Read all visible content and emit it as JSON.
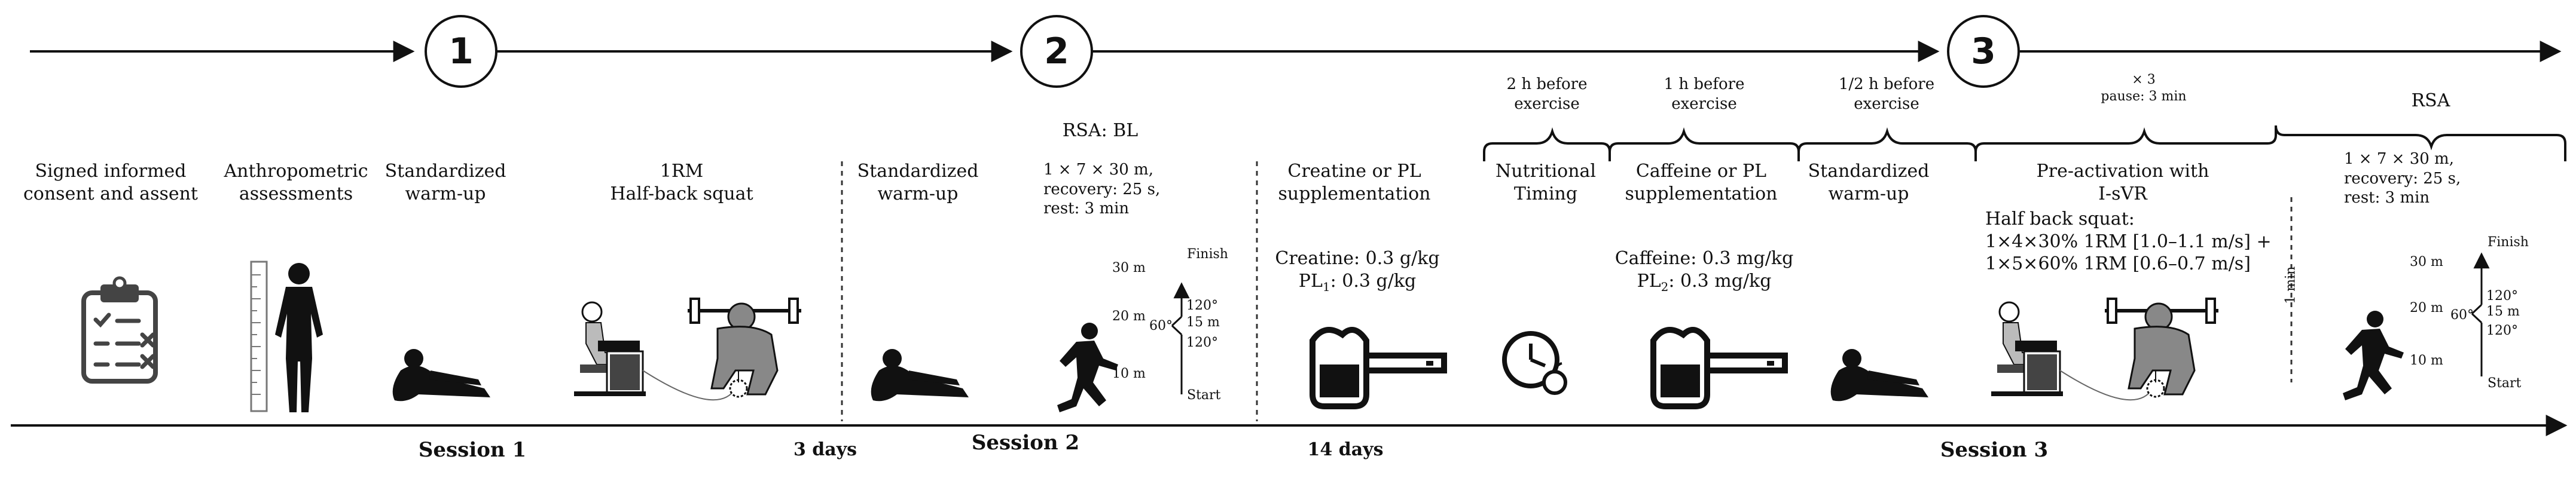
{
  "steps": [
    "1",
    "2",
    "3"
  ],
  "session1": {
    "consent": [
      "Signed informed",
      "consent and assent"
    ],
    "anthro": [
      "Anthropometric",
      "assessments"
    ],
    "warmup": [
      "Standardized",
      "warm-up"
    ],
    "rm": [
      "1RM",
      "Half-back squat"
    ],
    "label": "Session 1"
  },
  "gap1": "3 days",
  "session2": {
    "warmup": [
      "Standardized",
      "warm-up"
    ],
    "rsa_title": "RSA: BL",
    "rsa_details": [
      "1 × 7 × 30 m,",
      "recovery: 25 s,",
      "rest: 3 min"
    ],
    "supp": [
      "Creatine or PL",
      "supplementation"
    ],
    "creatine": "Creatine: 0.3 g/kg",
    "pl1_prefix": "PL",
    "pl1_sub": "1",
    "pl1_suffix": ": 0.3 g/kg",
    "label": "Session 2"
  },
  "gap2": "14 days",
  "session3": {
    "time1": [
      "2 h before",
      "exercise"
    ],
    "time2": [
      "1 h before",
      "exercise"
    ],
    "time3": [
      "1/2 h before",
      "exercise"
    ],
    "reps": [
      "× 3",
      "pause: 3 min"
    ],
    "rsa_label": "RSA",
    "nutri": [
      "Nutritional",
      "Timing"
    ],
    "caffeine_supp": [
      "Caffeine or PL",
      "supplementation"
    ],
    "caffeine": "Caffeine: 0.3 mg/kg",
    "pl2_prefix": "PL",
    "pl2_sub": "2",
    "pl2_suffix": ": 0.3 mg/kg",
    "warmup": [
      "Standardized",
      "warm-up"
    ],
    "preact": [
      "Pre-activation with",
      "I-sVR"
    ],
    "squat_title": "Half back squat:",
    "squat_lines": [
      "1×4×30% 1RM [1.0–1.1 m/s] +",
      "1×5×60% 1RM [0.6–0.7 m/s]"
    ],
    "rest": "1 min",
    "rsa_details": [
      "1 × 7 × 30 m,",
      "recovery: 25 s,",
      "rest: 3 min"
    ],
    "label": "Session 3"
  },
  "rsa_track": {
    "finish": "Finish",
    "start": "Start",
    "d30": "30 m",
    "d20": "20 m",
    "d15": "15 m",
    "d10": "10 m",
    "a120a": "120°",
    "a60": "60°",
    "a120b": "120°"
  },
  "icons": {
    "clipboard": "clipboard-checklist-icon",
    "body": "human-body-measurement-icon",
    "stretch": "stretching-person-icon",
    "squat": "barbell-squat-with-computer-icon",
    "runner": "sprinting-runner-icon",
    "scoop": "supplement-scoop-icon",
    "clock": "clock-with-apple-icon"
  }
}
